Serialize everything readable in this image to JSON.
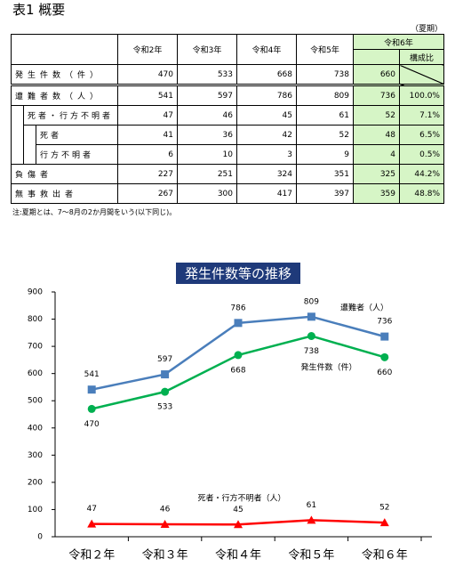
{
  "header": {
    "title": "表1 概要"
  },
  "table": {
    "unit": "（夏期）",
    "columns": [
      "令和2年",
      "令和3年",
      "令和4年",
      "令和5年",
      "令和6年"
    ],
    "share_header": "構成比",
    "rows": [
      {
        "label": "発生件数（件）",
        "level": 0,
        "values": [
          470,
          533,
          668,
          738,
          660
        ]
      },
      {
        "label": "遭難者数（人）",
        "level": 0,
        "values": [
          541,
          597,
          786,
          809,
          736
        ],
        "share": "100.0%"
      },
      {
        "label": "死者・行方不明者",
        "level": 1,
        "values": [
          47,
          46,
          45,
          61,
          52
        ],
        "share": "7.1%"
      },
      {
        "label": "死者",
        "level": 2,
        "values": [
          41,
          36,
          42,
          52,
          48
        ],
        "share": "6.5%"
      },
      {
        "label": "行方不明者",
        "level": 2,
        "values": [
          6,
          10,
          3,
          9,
          4
        ],
        "share": "0.5%"
      },
      {
        "label": "負傷者",
        "level": 0,
        "values": [
          227,
          251,
          324,
          351,
          325
        ],
        "share": "44.2%"
      },
      {
        "label": "無事救出者",
        "level": 0,
        "values": [
          267,
          300,
          417,
          397,
          359
        ],
        "share": "48.8%"
      }
    ],
    "note": "注:夏期とは、7～8月の2か月間をいう(以下同じ)。"
  },
  "chart_data": {
    "type": "line",
    "title": "発生件数等の推移",
    "categories": [
      "令和２年",
      "令和３年",
      "令和４年",
      "令和５年",
      "令和６年"
    ],
    "ylim": [
      0,
      900
    ],
    "yticks": [
      0,
      100,
      200,
      300,
      400,
      500,
      600,
      700,
      800,
      900
    ],
    "series": [
      {
        "name": "遭難者（人）",
        "color": "#4a7ebb",
        "marker": "square",
        "values": [
          541,
          597,
          786,
          809,
          736
        ]
      },
      {
        "name": "発生件数（件）",
        "color": "#00b050",
        "marker": "circle",
        "values": [
          470,
          533,
          668,
          738,
          660
        ]
      },
      {
        "name": "死者・行方不明者（人）",
        "color": "#ff0000",
        "marker": "triangle",
        "values": [
          47,
          46,
          45,
          61,
          52
        ]
      }
    ]
  }
}
